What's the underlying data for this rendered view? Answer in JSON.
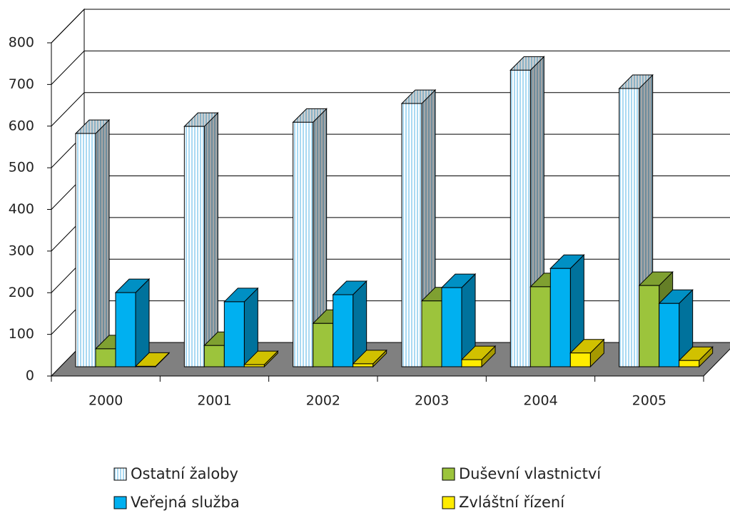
{
  "chart_data": {
    "type": "bar3d",
    "categories": [
      "2000",
      "2001",
      "2002",
      "2003",
      "2004",
      "2005"
    ],
    "series": [
      {
        "name": "Ostatní žaloby",
        "color": "#a9d9f2",
        "hatch": "vertical",
        "values": [
          560,
          577,
          587,
          632,
          712,
          668
        ]
      },
      {
        "name": "Duševní vlastnictví",
        "color": "#9cc43c",
        "values": [
          43,
          51,
          104,
          158,
          192,
          195
        ]
      },
      {
        "name": "Veřejná služba",
        "color": "#00b0f0",
        "values": [
          178,
          156,
          173,
          190,
          236,
          152
        ]
      },
      {
        "name": "Zvláštní řízení",
        "color": "#ffec00",
        "values": [
          1,
          5,
          7,
          17,
          33,
          15
        ]
      }
    ],
    "ylim": [
      0,
      800
    ],
    "yticks": [
      0,
      100,
      200,
      300,
      400,
      500,
      600,
      700,
      800
    ],
    "grid": true
  }
}
